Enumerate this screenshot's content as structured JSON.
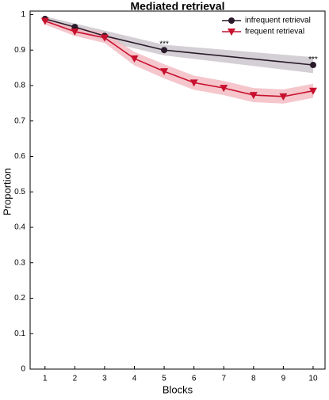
{
  "chart_data": {
    "type": "line",
    "title": "Mediated retrieval",
    "xlabel": "Blocks",
    "ylabel": "Proportion",
    "xlim": [
      0.5,
      10.4
    ],
    "ylim": [
      0,
      1.01
    ],
    "xticks": [
      1,
      2,
      3,
      4,
      5,
      6,
      7,
      8,
      9,
      10
    ],
    "yticks": [
      0,
      0.1,
      0.2,
      0.3,
      0.4,
      0.5,
      0.6,
      0.7,
      0.8,
      0.9,
      1
    ],
    "grid": false,
    "legend": "upper right",
    "series": [
      {
        "name": "infrequent retrieval",
        "color": "#2a1a2a",
        "band_color": "#c9c3c9",
        "marker": "circle",
        "x": [
          1,
          2,
          3,
          5,
          10
        ],
        "values": [
          0.988,
          0.965,
          0.94,
          0.9,
          0.858
        ],
        "lower": [
          0.98,
          0.955,
          0.925,
          0.885,
          0.835
        ],
        "upper": [
          0.995,
          0.975,
          0.955,
          0.915,
          0.88
        ]
      },
      {
        "name": "frequent retrieval",
        "color": "#c8102e",
        "band_color": "#f3b8bf",
        "marker": "triangle",
        "x": [
          1,
          2,
          3,
          4,
          5,
          6,
          7,
          8,
          9,
          10
        ],
        "values": [
          0.982,
          0.952,
          0.935,
          0.876,
          0.84,
          0.808,
          0.793,
          0.773,
          0.769,
          0.785
        ],
        "lower": [
          0.972,
          0.94,
          0.92,
          0.857,
          0.82,
          0.788,
          0.773,
          0.753,
          0.749,
          0.765
        ],
        "upper": [
          0.99,
          0.964,
          0.95,
          0.895,
          0.86,
          0.828,
          0.813,
          0.793,
          0.789,
          0.805
        ]
      }
    ],
    "annotations": [
      {
        "text": "***",
        "x": 5,
        "y": 0.916
      },
      {
        "text": "***",
        "x": 10,
        "y": 0.873
      }
    ]
  }
}
